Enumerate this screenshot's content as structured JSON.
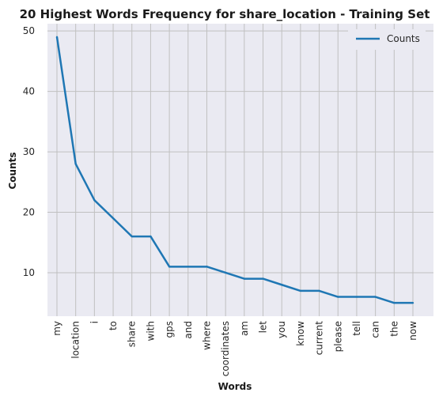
{
  "chart_data": {
    "type": "line",
    "title": "20 Highest Words Frequency for share_location - Training Set",
    "xlabel": "Words",
    "ylabel": "Counts",
    "categories": [
      "my",
      "location",
      "i",
      "to",
      "share",
      "with",
      "gps",
      "and",
      "where",
      "coordinates",
      "am",
      "let",
      "you",
      "know",
      "current",
      "please",
      "tell",
      "can",
      "the",
      "now"
    ],
    "series": [
      {
        "name": "Counts",
        "values": [
          49,
          28,
          22,
          19,
          16,
          16,
          11,
          11,
          11,
          10,
          9,
          9,
          8,
          7,
          7,
          6,
          6,
          6,
          5,
          5
        ]
      }
    ],
    "yticks": [
      10,
      20,
      30,
      40,
      50
    ],
    "ylim": [
      2.8,
      51.2
    ],
    "grid": true,
    "legend_position": "top-right",
    "colors": {
      "line": "#1f77b4",
      "plot_background": "#eaeaf2",
      "grid": "#c0c0c0"
    }
  }
}
